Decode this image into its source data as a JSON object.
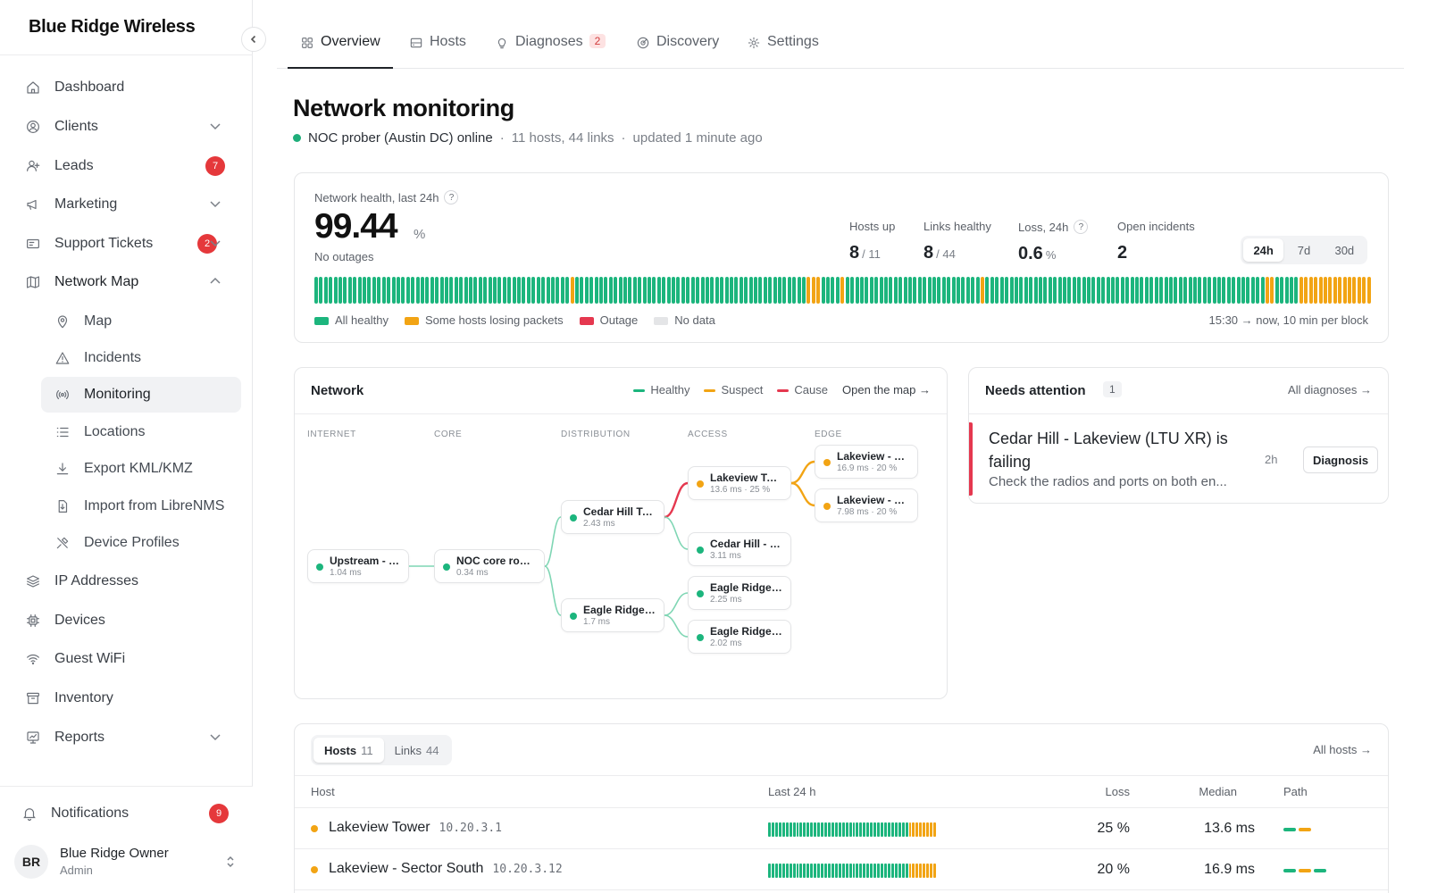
{
  "brand": "Blue Ridge Wireless",
  "sidebar": {
    "items": [
      {
        "label": "Dashboard",
        "icon": "home-icon"
      },
      {
        "label": "Clients",
        "icon": "user-circle-icon",
        "chevron": "down"
      },
      {
        "label": "Leads",
        "icon": "user-plus-icon",
        "badge": "7"
      },
      {
        "label": "Marketing",
        "icon": "megaphone-icon",
        "chevron": "down"
      },
      {
        "label": "Support Tickets",
        "icon": "ticket-icon",
        "badge": "2",
        "chevron": "down"
      },
      {
        "label": "Network Map",
        "icon": "map-icon",
        "chevron": "up"
      },
      {
        "label": "Map",
        "icon": "map-pin-icon"
      },
      {
        "label": "Incidents",
        "icon": "warning-icon"
      },
      {
        "label": "Monitoring",
        "icon": "radio-icon"
      },
      {
        "label": "Locations",
        "icon": "list-icon"
      },
      {
        "label": "Export KML/KMZ",
        "icon": "download-icon"
      },
      {
        "label": "Import from LibreNMS",
        "icon": "file-import-icon"
      },
      {
        "label": "Device Profiles",
        "icon": "tools-icon"
      },
      {
        "label": "IP Addresses",
        "icon": "layers-icon"
      },
      {
        "label": "Devices",
        "icon": "chip-icon"
      },
      {
        "label": "Guest WiFi",
        "icon": "wifi-icon"
      },
      {
        "label": "Inventory",
        "icon": "archive-icon"
      },
      {
        "label": "Reports",
        "icon": "report-icon",
        "chevron": "down"
      }
    ],
    "notifications": {
      "label": "Notifications",
      "badge": "9"
    },
    "user": {
      "initials": "BR",
      "name": "Blue Ridge Owner",
      "role": "Admin"
    }
  },
  "tabs": [
    {
      "label": "Overview",
      "icon": "grid-icon"
    },
    {
      "label": "Hosts",
      "icon": "server-icon"
    },
    {
      "label": "Diagnoses",
      "icon": "lightbulb-icon",
      "badge": "2"
    },
    {
      "label": "Discovery",
      "icon": "radar-icon"
    },
    {
      "label": "Settings",
      "icon": "gear-icon"
    }
  ],
  "header": {
    "title": "Network monitoring",
    "prober": "NOC prober (Austin DC) online",
    "counts": "11 hosts, 44 links",
    "updated": "updated 1 minute ago",
    "sep": "·"
  },
  "health": {
    "label": "Network health, last 24h",
    "value": "99.44",
    "unit": "%",
    "note": "No outages",
    "kpis": [
      {
        "label": "Hosts up",
        "value": "8",
        "suffix": "/ 11"
      },
      {
        "label": "Links healthy",
        "value": "8",
        "suffix": "/ 44"
      },
      {
        "label": "Loss, 24h",
        "value": "0.6",
        "suffix": "%"
      },
      {
        "label": "Open incidents",
        "value": "2",
        "suffix": ""
      }
    ],
    "ranges": [
      "24h",
      "7d",
      "30d"
    ],
    "selected_range": "24h",
    "blocks": "gggggggggggggggggggggggggggggggggggggggggggggggggggggoggggggggggggggggggggggggggggggggggggggggggggggggoooggggoggggggggggggggggggggggggggggoggggggggggggggggggggggggggggggggggggggggggggggggggggggggggoogggggooooooooooooooo",
    "legend": [
      {
        "label": "All healthy",
        "color": "#1cb57d"
      },
      {
        "label": "Some hosts losing packets",
        "color": "#f2a414"
      },
      {
        "label": "Outage",
        "color": "#e5384f"
      },
      {
        "label": "No data",
        "color": "#e4e5e7"
      }
    ],
    "range_note": "15:30 → now, 10 min per block"
  },
  "network": {
    "title": "Network",
    "legend": [
      {
        "label": "Healthy",
        "color": "#1cb57d"
      },
      {
        "label": "Suspect",
        "color": "#f2a414"
      },
      {
        "label": "Cause",
        "color": "#e5384f"
      }
    ],
    "open_link": "Open the map →",
    "columns": [
      "INTERNET",
      "CORE",
      "DISTRIBUTION",
      "ACCESS",
      "EDGE"
    ],
    "nodes": [
      {
        "name": "Upstream - Lum...",
        "metric": "1.04 ms",
        "status": "ok"
      },
      {
        "name": "NOC core route...",
        "metric": "0.34 ms",
        "status": "ok"
      },
      {
        "name": "Cedar Hill Tow...",
        "metric": "2.43 ms",
        "status": "ok"
      },
      {
        "name": "Eagle Ridge To...",
        "metric": "1.7 ms",
        "status": "ok"
      },
      {
        "name": "Lakeview Tower",
        "metric": "13.6 ms · 25 %",
        "status": "warn"
      },
      {
        "name": "Cedar Hill - S...",
        "metric": "3.11 ms",
        "status": "ok"
      },
      {
        "name": "Eagle Ridge -...",
        "metric": "2.25 ms",
        "status": "ok"
      },
      {
        "name": "Eagle Ridge -...",
        "metric": "2.02 ms",
        "status": "ok"
      },
      {
        "name": "Lakeview - Sec...",
        "metric": "16.9 ms · 20 %",
        "status": "warn"
      },
      {
        "name": "Lakeview - Sec...",
        "metric": "7.98 ms · 20 %",
        "status": "warn"
      }
    ],
    "links": [
      {
        "from": 0,
        "to": 1,
        "status": "ok"
      },
      {
        "from": 1,
        "to": 2,
        "status": "ok"
      },
      {
        "from": 1,
        "to": 3,
        "status": "ok"
      },
      {
        "from": 2,
        "to": 4,
        "status": "cause"
      },
      {
        "from": 2,
        "to": 5,
        "status": "ok"
      },
      {
        "from": 3,
        "to": 6,
        "status": "ok"
      },
      {
        "from": 3,
        "to": 7,
        "status": "ok"
      },
      {
        "from": 4,
        "to": 8,
        "status": "warn"
      },
      {
        "from": 4,
        "to": 9,
        "status": "warn"
      }
    ]
  },
  "attention": {
    "title": "Needs attention",
    "count": "1",
    "all_link": "All diagnoses →",
    "item": {
      "title": "Cedar Hill - Lakeview (LTU XR) is failing",
      "desc": "Check the radios and ports on both en...",
      "age": "2h",
      "button": "Diagnosis"
    }
  },
  "hosts": {
    "tabs": [
      {
        "label": "Hosts",
        "count": "11"
      },
      {
        "label": "Links",
        "count": "44"
      }
    ],
    "all_link": "All hosts →",
    "columns": {
      "host": "Host",
      "last": "Last 24 h",
      "loss": "Loss",
      "median": "Median",
      "path": "Path"
    },
    "rows": [
      {
        "name": "Lakeview Tower",
        "ip": "10.20.3.1",
        "status": "warn",
        "loss": "25 %",
        "median": "13.6 ms",
        "history": "ggggggggggggggggggggggggggggggggggggggggoooooooo",
        "path": [
          "ok",
          "warn"
        ]
      },
      {
        "name": "Lakeview - Sector South",
        "ip": "10.20.3.12",
        "status": "warn",
        "loss": "20 %",
        "median": "16.9 ms",
        "history": "ggggggggggggggggggggggggggggggggggggggggoooooooo",
        "path": [
          "ok",
          "warn",
          "ok"
        ]
      }
    ]
  }
}
